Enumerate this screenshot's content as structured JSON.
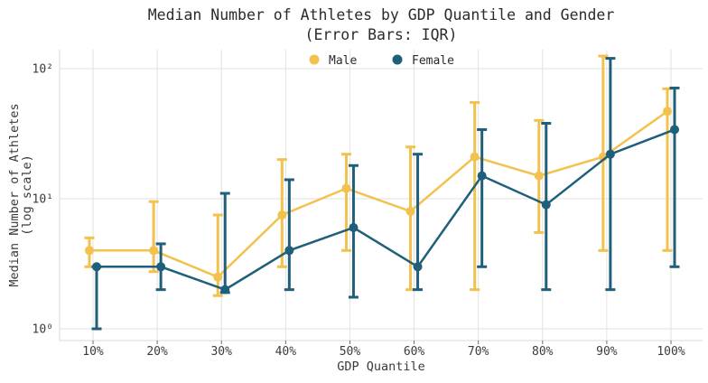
{
  "figure": {
    "title": "Median Number of Athletes by GDP Quantile and Gender",
    "subtitle": "(Error Bars: IQR)"
  },
  "colors": {
    "male": "#F2C14E",
    "female": "#1F5F7C",
    "grid": "#E2E2E2",
    "spine": "#D8D8D8",
    "tick_mark": "#6e6e6e",
    "text": "#2b2b2b"
  },
  "chart_data": {
    "type": "line",
    "title": "Median Number of Athletes by GDP Quantile and Gender",
    "subtitle": "(Error Bars: IQR)",
    "xlabel": "GDP Quantile",
    "ylabel_line1": "Median Number of Athletes",
    "ylabel_line2": "(log scale)",
    "yscale": "log",
    "ylim": [
      0.8,
      140
    ],
    "grid": true,
    "legend_position": "top-center",
    "error_bars": "IQR (q1 to q3)",
    "categories": [
      "10%",
      "20%",
      "30%",
      "40%",
      "50%",
      "60%",
      "70%",
      "80%",
      "90%",
      "100%"
    ],
    "yticks": [
      {
        "value": 1,
        "label": "10⁰"
      },
      {
        "value": 10,
        "label": "10¹"
      },
      {
        "value": 100,
        "label": "10²"
      }
    ],
    "series": [
      {
        "name": "Male",
        "color": "#F2C14E",
        "median": [
          4,
          4,
          2.5,
          7.5,
          12,
          8,
          21,
          15,
          21,
          47
        ],
        "q1": [
          3,
          2.75,
          1.8,
          3,
          4,
          2,
          2,
          5.5,
          4,
          4
        ],
        "q3": [
          5,
          9.5,
          7.5,
          20,
          22,
          25,
          55,
          40,
          125,
          70
        ]
      },
      {
        "name": "Female",
        "color": "#1F5F7C",
        "median": [
          3,
          3,
          2,
          4,
          6,
          3,
          15,
          9,
          22,
          34
        ],
        "q1": [
          1,
          2,
          1.9,
          2,
          1.75,
          2,
          3,
          2,
          2,
          3
        ],
        "q3": [
          3,
          4.5,
          11,
          14,
          18,
          22,
          34,
          38,
          120,
          71
        ]
      }
    ]
  }
}
